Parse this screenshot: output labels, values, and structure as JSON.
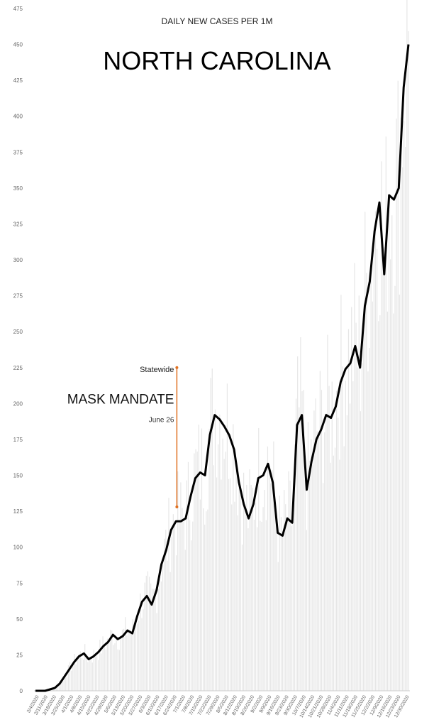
{
  "chart_data": {
    "type": "line",
    "title": "NORTH CAROLINA",
    "subtitle": "DAILY NEW CASES PER 1M",
    "xlabel": "",
    "ylabel": "",
    "ylim": [
      0,
      475
    ],
    "yticks": [
      0,
      25,
      50,
      75,
      100,
      125,
      150,
      175,
      200,
      225,
      250,
      275,
      300,
      325,
      350,
      375,
      400,
      425,
      450,
      475
    ],
    "grid": false,
    "x_tick_labels": [
      "3/4/2020",
      "3/11/2020",
      "3/18/2020",
      "3/25/2020",
      "4/1/2020",
      "4/8/2020",
      "4/15/2020",
      "4/22/2020",
      "4/29/2020",
      "5/6/2020",
      "5/13/2020",
      "5/20/2020",
      "5/27/2020",
      "6/3/2020",
      "6/10/2020",
      "6/17/2020",
      "6/24/2020",
      "7/1/2020",
      "7/8/2020",
      "7/15/2020",
      "7/22/2020",
      "7/29/2020",
      "8/5/2020",
      "8/12/2020",
      "8/19/2020",
      "8/26/2020",
      "9/2/2020",
      "9/9/2020",
      "9/16/2020",
      "9/23/2020",
      "9/30/2020",
      "10/7/2020",
      "10/14/2020",
      "10/21/2020",
      "10/28/2020",
      "11/4/2020",
      "11/11/2020",
      "11/18/2020",
      "11/25/2020",
      "12/2/2020",
      "12/9/2020",
      "12/16/2020",
      "12/23/2020",
      "12/30/2020"
    ],
    "series": [
      {
        "values": [
          0,
          0,
          0,
          1,
          2,
          5,
          10,
          15,
          20,
          24,
          26,
          22,
          24,
          27,
          31,
          34,
          39,
          36,
          38,
          42,
          40,
          52,
          62,
          66,
          60,
          70,
          88,
          98,
          112,
          118,
          118,
          120,
          135,
          148,
          152,
          150,
          178,
          192,
          189,
          184,
          178,
          168,
          145,
          130,
          120,
          130,
          148,
          150,
          158,
          145,
          110,
          108,
          120,
          117,
          185,
          192,
          140,
          160,
          175,
          182,
          192,
          190,
          198,
          215,
          224,
          228,
          240,
          225,
          268,
          285,
          320,
          340,
          290,
          345,
          342,
          350,
          420,
          450
        ]
      }
    ],
    "daily_bars_note": "",
    "annotations": {
      "line1": "Statewide",
      "line2": "MASK MANDATE",
      "line3": "June 26"
    },
    "colors": {
      "line": "#000000",
      "annotation": "#e07020",
      "bars": "#e6e6e6",
      "axis": "#cccccc",
      "text": "#666666"
    }
  }
}
